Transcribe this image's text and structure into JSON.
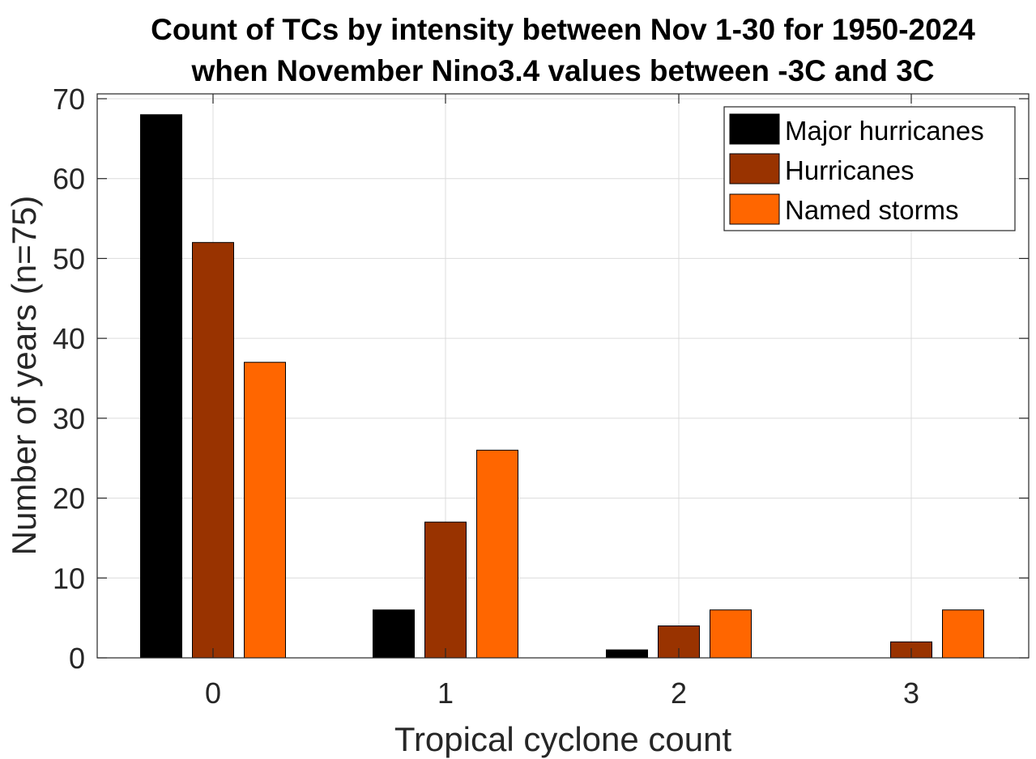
{
  "chart_data": {
    "type": "bar",
    "title_lines": [
      "Count of TCs by intensity between Nov 1-30 for 1950-2024",
      "when November Nino3.4 values between -3C and 3C"
    ],
    "xlabel": "Tropical cyclone count",
    "ylabel": "Number of years (n=75)",
    "categories": [
      "0",
      "1",
      "2",
      "3"
    ],
    "x_tick_labels": [
      "0",
      "1",
      "2",
      "3"
    ],
    "y_tick_labels": [
      "0",
      "10",
      "20",
      "30",
      "40",
      "50",
      "60",
      "70"
    ],
    "y_ticks": [
      0,
      10,
      20,
      30,
      40,
      50,
      60,
      70
    ],
    "ylim": [
      0,
      70
    ],
    "grid": true,
    "legend_position": "top-right",
    "series": [
      {
        "name": "Major hurricanes",
        "color": "#000000",
        "values": [
          68,
          6,
          1,
          0
        ]
      },
      {
        "name": "Hurricanes",
        "color": "#993300",
        "values": [
          52,
          17,
          4,
          2
        ]
      },
      {
        "name": "Named storms",
        "color": "#ff6600",
        "values": [
          37,
          26,
          6,
          6
        ]
      }
    ]
  }
}
